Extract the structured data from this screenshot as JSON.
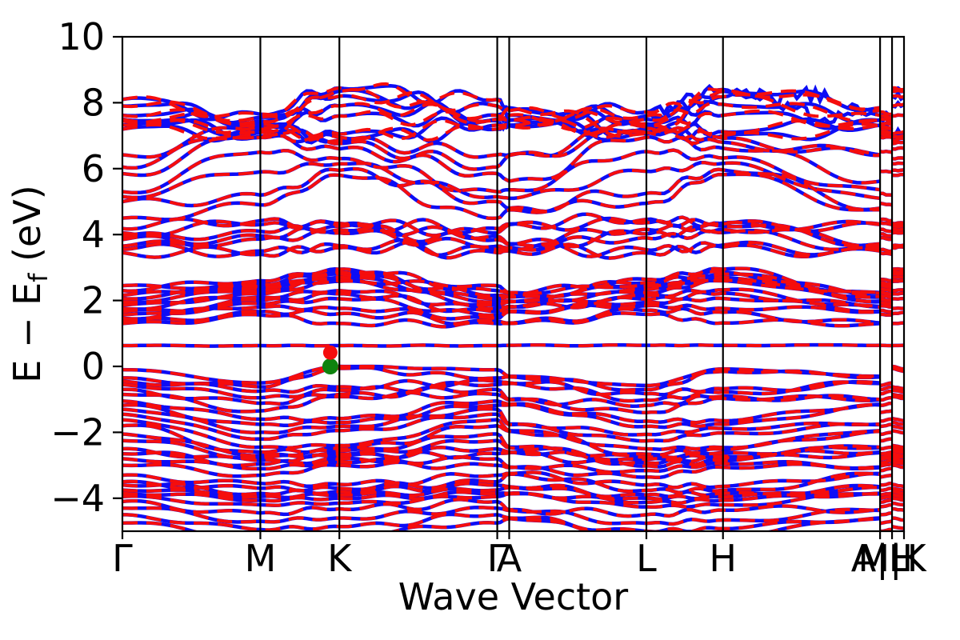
{
  "figure": {
    "xlabel": "Wave Vector",
    "ylabel_prefix": "E − E",
    "ylabel_sub": "f",
    "ylabel_suffix": " (eV)",
    "background": "#ffffff",
    "frame_color": "#000000"
  },
  "chart_data": {
    "type": "line",
    "title": "",
    "xlabel": "Wave Vector",
    "ylabel": "E − E_f (eV)",
    "ylim": [
      -5,
      10
    ],
    "yticks": [
      10,
      8,
      6,
      4,
      2,
      0,
      -2,
      -4
    ],
    "ytick_labels": [
      "10",
      "8",
      "6",
      "4",
      "2",
      "0",
      "−2",
      "−4"
    ],
    "grid": false,
    "legend": null,
    "kpath": {
      "labels": [
        "Γ",
        "M",
        "K",
        "Γ",
        "A",
        "L",
        "H",
        "A|L",
        "M|K",
        "H"
      ],
      "x": [
        0.0,
        0.1765,
        0.2776,
        0.4796,
        0.4949,
        0.6704,
        0.7684,
        0.9694,
        0.9847,
        1.0
      ]
    },
    "series": [
      {
        "name": "band-set-1",
        "color": "#0d0df5",
        "style": "solid",
        "linewidth": 4.5
      },
      {
        "name": "band-set-2",
        "color": "#f50d0d",
        "style": "dashed",
        "dash": [
          19,
          11
        ],
        "linewidth": 4
      }
    ],
    "band_energy_points": [
      "Γ",
      "M",
      "K",
      "A",
      "L",
      "H"
    ],
    "bands": [
      [
        -0.1,
        -0.5,
        0.0,
        -0.3,
        -0.58,
        -0.08
      ],
      [
        -0.35,
        -0.62,
        -0.06,
        -0.32,
        -0.7,
        -0.15
      ],
      [
        -0.45,
        -0.75,
        -0.62,
        -0.5,
        -0.83,
        -0.68
      ],
      [
        -0.55,
        -0.95,
        -0.72,
        -0.52,
        -1.02,
        -0.78
      ],
      [
        -0.7,
        -1.12,
        -0.85,
        -1.0,
        -1.18,
        -0.9
      ],
      [
        -0.85,
        -1.35,
        -0.92,
        -1.02,
        -1.4,
        -0.97
      ],
      [
        -1.05,
        -1.6,
        -1.58,
        -1.15,
        -1.66,
        -1.65
      ],
      [
        -1.18,
        -1.76,
        -1.7,
        -1.17,
        -1.82,
        -1.76
      ],
      [
        -1.3,
        -2.0,
        -1.82,
        -1.75,
        -2.06,
        -1.88
      ],
      [
        -1.45,
        -2.2,
        -1.95,
        -1.77,
        -2.26,
        -2.02
      ],
      [
        -1.62,
        -2.45,
        -2.4,
        -1.95,
        -2.5,
        -2.46
      ],
      [
        -1.8,
        -2.6,
        -2.5,
        -1.97,
        -2.66,
        -2.52
      ],
      [
        -2.05,
        -2.7,
        -2.56,
        -2.45,
        -2.76,
        -2.62
      ],
      [
        -2.25,
        -2.76,
        -2.66,
        -2.47,
        -2.82,
        -2.72
      ],
      [
        -2.5,
        -2.86,
        -2.72,
        -2.6,
        -2.92,
        -2.76
      ],
      [
        -2.65,
        -2.96,
        -2.82,
        -2.62,
        -3.02,
        -2.86
      ],
      [
        -2.8,
        -3.1,
        -2.9,
        -3.05,
        -3.16,
        -2.95
      ],
      [
        -3.0,
        -3.3,
        -3.0,
        -3.07,
        -3.36,
        -3.06
      ],
      [
        -3.3,
        -3.55,
        -3.58,
        -3.25,
        -3.6,
        -3.64
      ],
      [
        -3.5,
        -3.7,
        -3.7,
        -3.27,
        -3.76,
        -3.76
      ],
      [
        -3.6,
        -3.85,
        -3.8,
        -3.65,
        -3.9,
        -3.86
      ],
      [
        -3.75,
        -3.95,
        -3.9,
        -3.67,
        -4.0,
        -3.96
      ],
      [
        -3.85,
        -4.06,
        -4.0,
        -3.85,
        -4.12,
        -4.06
      ],
      [
        -3.95,
        -4.2,
        -4.15,
        -3.87,
        -4.26,
        -4.2
      ],
      [
        -4.1,
        -4.45,
        -4.32,
        -4.35,
        -4.5,
        -4.36
      ],
      [
        -4.3,
        -4.7,
        -4.6,
        -4.37,
        -4.76,
        -4.66
      ],
      [
        -4.5,
        -4.95,
        -4.86,
        -4.6,
        -5.0,
        -4.92
      ],
      [
        -4.75,
        -5.2,
        -5.1,
        -4.62,
        -5.22,
        -5.15
      ],
      [
        0.63,
        0.63,
        0.63,
        0.64,
        0.64,
        0.64
      ],
      [
        1.3,
        1.56,
        1.3,
        1.3,
        1.58,
        1.32
      ],
      [
        1.36,
        1.66,
        1.6,
        1.32,
        1.7,
        1.64
      ],
      [
        1.46,
        1.8,
        1.76,
        1.66,
        1.84,
        1.76
      ],
      [
        1.56,
        1.9,
        2.05,
        1.68,
        1.94,
        2.06
      ],
      [
        1.66,
        2.0,
        2.2,
        1.8,
        2.04,
        2.22
      ],
      [
        1.76,
        2.1,
        2.3,
        1.82,
        2.14,
        2.32
      ],
      [
        1.86,
        2.2,
        2.6,
        1.96,
        2.24,
        2.6
      ],
      [
        1.96,
        2.3,
        2.7,
        1.98,
        2.34,
        2.7
      ],
      [
        2.06,
        2.4,
        2.8,
        2.1,
        2.44,
        2.8
      ],
      [
        2.16,
        2.5,
        2.86,
        2.12,
        2.54,
        2.86
      ],
      [
        2.3,
        2.6,
        2.95,
        2.22,
        2.64,
        2.95
      ],
      [
        2.45,
        2.42,
        2.58,
        2.24,
        2.46,
        2.6
      ],
      [
        3.45,
        3.4,
        3.6,
        3.5,
        3.44,
        3.62
      ],
      [
        3.55,
        3.5,
        3.66,
        3.56,
        3.54,
        3.68
      ],
      [
        3.65,
        3.86,
        4.05,
        3.6,
        3.9,
        4.06
      ],
      [
        3.85,
        3.96,
        4.15,
        3.7,
        4.02,
        4.16
      ],
      [
        3.95,
        4.1,
        4.25,
        3.72,
        4.16,
        4.26
      ],
      [
        4.05,
        4.3,
        4.34,
        4.3,
        4.36,
        4.35
      ],
      [
        4.18,
        4.42,
        4.3,
        4.32,
        4.46,
        4.32
      ],
      [
        4.5,
        4.9,
        5.8,
        4.75,
        4.95,
        5.82
      ],
      [
        5.0,
        5.2,
        5.95,
        4.8,
        5.25,
        5.96
      ],
      [
        5.15,
        5.9,
        6.15,
        5.1,
        5.92,
        6.16
      ],
      [
        5.3,
        6.5,
        6.3,
        5.36,
        6.52,
        6.32
      ],
      [
        5.85,
        6.95,
        6.6,
        5.62,
        6.95,
        6.62
      ],
      [
        6.05,
        7.1,
        6.76,
        6.4,
        7.1,
        6.8
      ],
      [
        6.42,
        7.2,
        6.86,
        6.42,
        7.22,
        6.92
      ],
      [
        7.2,
        7.1,
        6.95,
        7.3,
        7.1,
        7.0
      ],
      [
        7.32,
        7.25,
        7.05,
        7.32,
        7.26,
        7.12
      ],
      [
        7.5,
        7.35,
        7.6,
        7.46,
        7.36,
        7.62
      ],
      [
        7.62,
        7.45,
        7.9,
        7.48,
        7.5,
        7.95
      ],
      [
        7.9,
        7.55,
        8.2,
        7.62,
        7.6,
        8.18
      ],
      [
        8.1,
        7.65,
        8.45,
        7.76,
        7.72,
        8.4
      ],
      [
        7.45,
        6.98,
        8.35,
        7.85,
        7.05,
        8.35
      ]
    ],
    "band_flags": {
      "split_from_index": 55,
      "jag_indices": [
        59,
        60
      ]
    },
    "markers": [
      {
        "name": "vbm",
        "color": "#0e830e",
        "x": 0.266,
        "e": 0.0,
        "r": 10
      },
      {
        "name": "cbm",
        "color": "#f50d0d",
        "x": 0.266,
        "e": 0.42,
        "r": 9
      }
    ]
  }
}
